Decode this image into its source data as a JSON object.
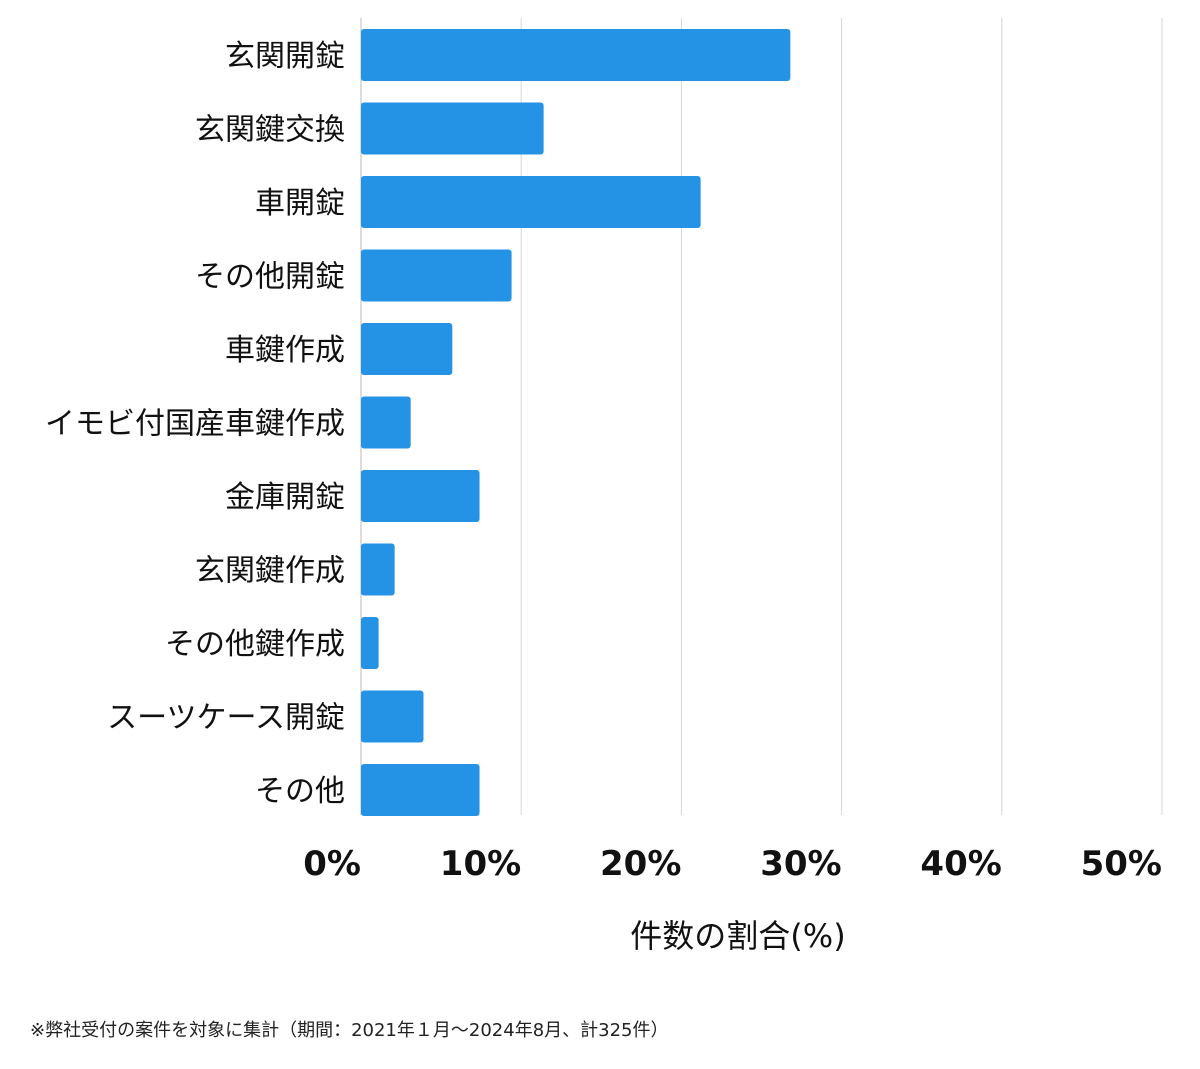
{
  "chart_data": {
    "type": "bar",
    "orientation": "horizontal",
    "categories": [
      "玄関開錠",
      "玄関鍵交換",
      "車開錠",
      "その他開錠",
      "車鍵作成",
      "イモビ付国産車鍵作成",
      "金庫開錠",
      "玄関鍵作成",
      "その他鍵作成",
      "スーツケース開錠",
      "その他"
    ],
    "values": [
      26.8,
      11.4,
      21.2,
      9.4,
      5.7,
      3.1,
      7.4,
      2.1,
      1.1,
      3.9,
      7.4
    ],
    "xlabel": "件数の割合(%)",
    "ylabel": "",
    "xlim": [
      0,
      50
    ],
    "xticks": [
      "0%",
      "10%",
      "20%",
      "30%",
      "40%",
      "50%"
    ],
    "grid": true,
    "bar_color": "#2493e6"
  },
  "footnote": "※弊社受付の案件を対象に集計（期間：2021年１月〜2024年8月、計325件）"
}
